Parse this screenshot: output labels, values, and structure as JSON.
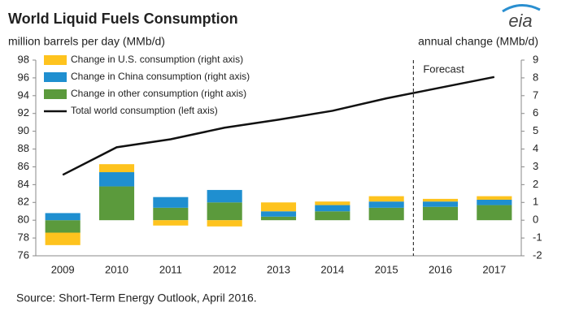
{
  "chart_data": {
    "type": "bar-line",
    "title": "World Liquid Fuels Consumption",
    "y_label": "million barrels per day (MMb/d)",
    "y2_label": "annual change (MMb/d)",
    "source": "Source: Short-Term Energy Outlook, April 2016.",
    "logo": "eia",
    "annotation": {
      "text": "Forecast",
      "x": "2016"
    },
    "categories": [
      "2009",
      "2010",
      "2011",
      "2012",
      "2013",
      "2014",
      "2015",
      "2016",
      "2017"
    ],
    "series": [
      {
        "name": "Change in other consumption (right axis)",
        "color": "#5b9a3c",
        "axis": "y2",
        "kind": "bar",
        "values": [
          -0.7,
          1.9,
          0.7,
          1.0,
          0.2,
          0.5,
          0.7,
          0.75,
          0.85
        ]
      },
      {
        "name": "Change in China consumption (right axis)",
        "color": "#1f8fd0",
        "axis": "y2",
        "kind": "bar",
        "values": [
          0.4,
          0.8,
          0.6,
          0.7,
          0.3,
          0.35,
          0.35,
          0.3,
          0.3
        ]
      },
      {
        "name": "Change in U.S. consumption (right axis)",
        "color": "#fec31e",
        "axis": "y2",
        "kind": "bar",
        "values": [
          -0.7,
          0.45,
          -0.3,
          -0.35,
          0.5,
          0.2,
          0.3,
          0.15,
          0.2
        ]
      },
      {
        "name": "Total world consumption (left axis)",
        "color": "#111111",
        "axis": "y",
        "kind": "line",
        "values": [
          85.1,
          88.2,
          89.1,
          90.4,
          91.3,
          92.3,
          93.7,
          94.9,
          96.1
        ]
      }
    ],
    "ylim": [
      76,
      98
    ],
    "yticks": [
      76,
      78,
      80,
      82,
      84,
      86,
      88,
      90,
      92,
      94,
      96,
      98
    ],
    "y2lim": [
      -2,
      9
    ],
    "y2ticks": [
      -2,
      -1,
      0,
      1,
      2,
      3,
      4,
      5,
      6,
      7,
      8,
      9
    ]
  }
}
